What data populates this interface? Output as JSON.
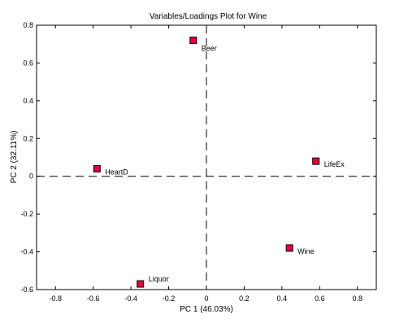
{
  "chart_data": {
    "type": "scatter",
    "title": "Variables/Loadings Plot for Wine",
    "xlabel": "PC 1 (46.03%)",
    "ylabel": "PC 2 (32.11%)",
    "xlim": [
      -0.9,
      0.9
    ],
    "ylim": [
      -0.6,
      0.8
    ],
    "x_ticks": [
      -0.8,
      -0.6,
      -0.4,
      -0.2,
      0,
      0.2,
      0.4,
      0.6,
      0.8
    ],
    "y_ticks": [
      -0.6,
      -0.4,
      -0.2,
      0,
      0.2,
      0.4,
      0.6,
      0.8
    ],
    "x_tick_labels": [
      "-0.8",
      "-0.6",
      "-0.4",
      "-0.2",
      "0",
      "0.2",
      "0.4",
      "0.6",
      "0.8"
    ],
    "y_tick_labels": [
      "-0.6",
      "-0.4",
      "-0.2",
      "0",
      "0.2",
      "0.4",
      "0.6",
      "0.8"
    ],
    "grid": false,
    "zero_lines": "dashed",
    "marker_color": "#e8003c",
    "points": [
      {
        "label": "Beer",
        "x": -0.07,
        "y": 0.72
      },
      {
        "label": "LifeEx",
        "x": 0.58,
        "y": 0.08
      },
      {
        "label": "HeartD",
        "x": -0.58,
        "y": 0.04
      },
      {
        "label": "Wine",
        "x": 0.44,
        "y": -0.38
      },
      {
        "label": "Liquor",
        "x": -0.35,
        "y": -0.57
      }
    ]
  }
}
